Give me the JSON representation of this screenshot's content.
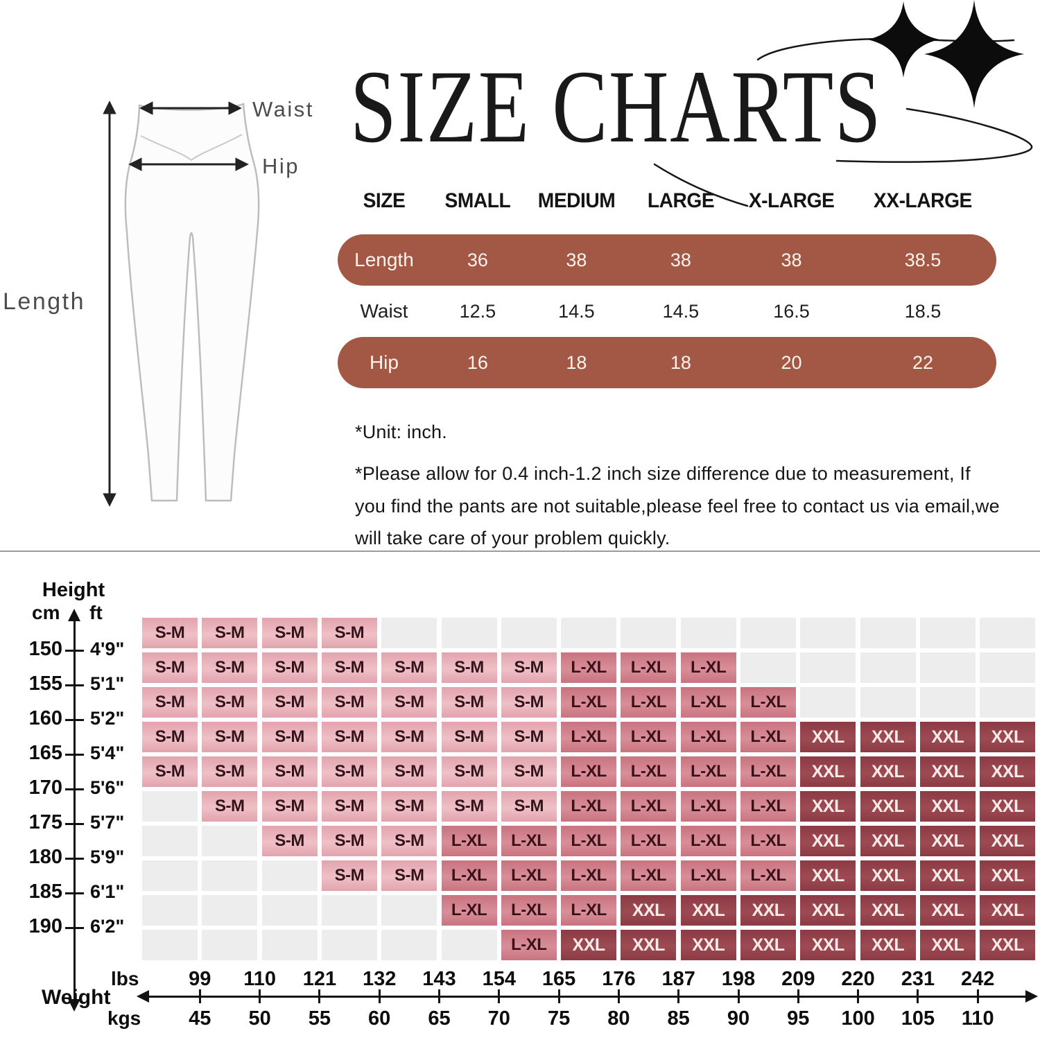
{
  "title": "SIZE CHARTS",
  "diagram": {
    "waist_label": "Waist",
    "hip_label": "Hip",
    "length_label": "Length"
  },
  "size_table": {
    "accent_color": "#a25845",
    "columns": [
      "SIZE",
      "SMALL",
      "MEDIUM",
      "LARGE",
      "X-LARGE",
      "XX-LARGE"
    ],
    "rows": [
      {
        "label": "Length",
        "values": [
          "36",
          "38",
          "38",
          "38",
          "38.5"
        ],
        "highlight": true
      },
      {
        "label": "Waist",
        "values": [
          "12.5",
          "14.5",
          "14.5",
          "16.5",
          "18.5"
        ],
        "highlight": false
      },
      {
        "label": "Hip",
        "values": [
          "16",
          "18",
          "18",
          "20",
          "22"
        ],
        "highlight": true
      }
    ]
  },
  "notes": [
    "*Unit: inch.",
    "*Please allow for 0.4 inch-1.2 inch size difference due to measurement,   If you find the pants are not suitable,please feel free to contact us via email,we will take care of your problem quickly."
  ],
  "chart_data": {
    "type": "heatmap",
    "title": "",
    "y_axis": {
      "label": "Height",
      "units": [
        "cm",
        "ft"
      ],
      "cm": [
        "150",
        "155",
        "160",
        "165",
        "170",
        "175",
        "180",
        "185",
        "190"
      ],
      "ft": [
        "4'9\"",
        "5'1\"",
        "5'2\"",
        "5'4\"",
        "5'6\"",
        "5'7\"",
        "5'9\"",
        "6'1\"",
        "6'2\""
      ]
    },
    "x_axis": {
      "label": "Weight",
      "units": [
        "lbs",
        "kgs"
      ],
      "lbs": [
        "99",
        "110",
        "121",
        "132",
        "143",
        "154",
        "165",
        "176",
        "187",
        "198",
        "209",
        "220",
        "231",
        "242"
      ],
      "kgs": [
        "45",
        "50",
        "55",
        "60",
        "65",
        "70",
        "75",
        "80",
        "85",
        "90",
        "95",
        "100",
        "105",
        "110"
      ]
    },
    "cell_styles": {
      "S-M": {
        "bg": "#e8aeb7",
        "bg_top": "#e2a3ad",
        "bg_mid": "#efc0c6",
        "text": "#33131a"
      },
      "L-XL": {
        "bg": "#cf7d88",
        "bg_top": "#c87380",
        "bg_mid": "#d88e98",
        "text": "#3a1119"
      },
      "XXL": {
        "bg": "#93404a",
        "bg_top": "#8c3a44",
        "bg_mid": "#9d4a53",
        "text": "#f8ebe8"
      },
      "empty": {
        "bg": "#ededed"
      }
    },
    "grid": [
      [
        "S-M",
        "S-M",
        "S-M",
        "S-M",
        "",
        "",
        "",
        "",
        "",
        "",
        "",
        "",
        "",
        "",
        ""
      ],
      [
        "S-M",
        "S-M",
        "S-M",
        "S-M",
        "S-M",
        "S-M",
        "S-M",
        "L-XL",
        "L-XL",
        "L-XL",
        "",
        "",
        "",
        "",
        ""
      ],
      [
        "S-M",
        "S-M",
        "S-M",
        "S-M",
        "S-M",
        "S-M",
        "S-M",
        "L-XL",
        "L-XL",
        "L-XL",
        "L-XL",
        "",
        "",
        "",
        ""
      ],
      [
        "S-M",
        "S-M",
        "S-M",
        "S-M",
        "S-M",
        "S-M",
        "S-M",
        "L-XL",
        "L-XL",
        "L-XL",
        "L-XL",
        "XXL",
        "XXL",
        "XXL",
        "XXL"
      ],
      [
        "S-M",
        "S-M",
        "S-M",
        "S-M",
        "S-M",
        "S-M",
        "S-M",
        "L-XL",
        "L-XL",
        "L-XL",
        "L-XL",
        "XXL",
        "XXL",
        "XXL",
        "XXL"
      ],
      [
        "",
        "S-M",
        "S-M",
        "S-M",
        "S-M",
        "S-M",
        "S-M",
        "L-XL",
        "L-XL",
        "L-XL",
        "L-XL",
        "XXL",
        "XXL",
        "XXL",
        "XXL"
      ],
      [
        "",
        "",
        "S-M",
        "S-M",
        "S-M",
        "L-XL",
        "L-XL",
        "L-XL",
        "L-XL",
        "L-XL",
        "L-XL",
        "XXL",
        "XXL",
        "XXL",
        "XXL"
      ],
      [
        "",
        "",
        "",
        "S-M",
        "S-M",
        "L-XL",
        "L-XL",
        "L-XL",
        "L-XL",
        "L-XL",
        "L-XL",
        "XXL",
        "XXL",
        "XXL",
        "XXL"
      ],
      [
        "",
        "",
        "",
        "",
        "",
        "L-XL",
        "L-XL",
        "L-XL",
        "XXL",
        "XXL",
        "XXL",
        "XXL",
        "XXL",
        "XXL",
        "XXL"
      ],
      [
        "",
        "",
        "",
        "",
        "",
        "",
        "L-XL",
        "XXL",
        "XXL",
        "XXL",
        "XXL",
        "XXL",
        "XXL",
        "XXL",
        "XXL"
      ]
    ]
  }
}
